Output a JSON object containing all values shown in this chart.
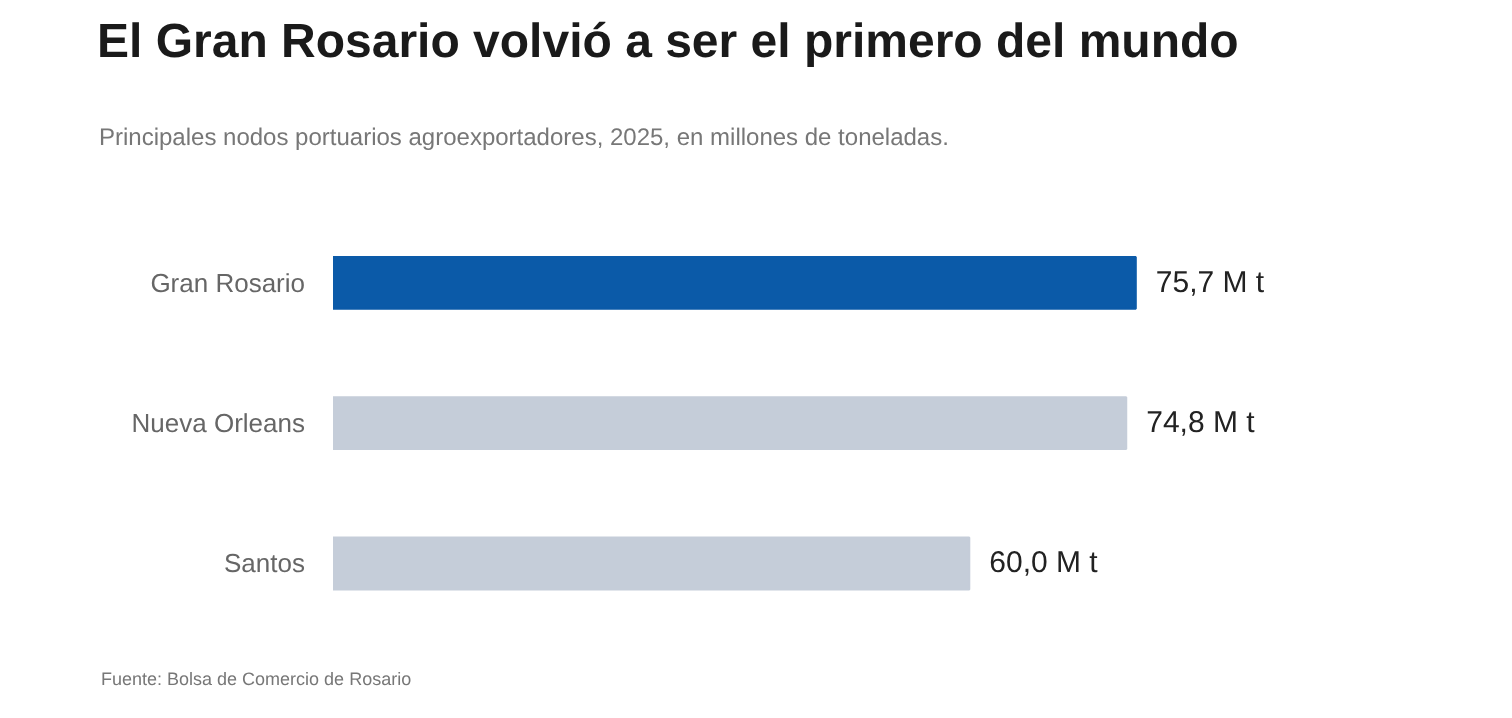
{
  "chart_data": {
    "type": "bar",
    "orientation": "horizontal",
    "title": "El Gran Rosario volvió a ser el primero del mundo",
    "subtitle": "Principales nodos portuarios agroexportadores, 2025, en millones de toneladas.",
    "categories": [
      "Gran Rosario",
      "Nueva Orleans",
      "Santos"
    ],
    "values": [
      75.7,
      74.8,
      60.0
    ],
    "colors": [
      "#0b5aa8",
      "#c5cdd9",
      "#c5cdd9"
    ],
    "value_labels": [
      "75,7 M t",
      "74,8 M t",
      "60,0 M t"
    ],
    "annotations": [
      "Fuente: Bolsa de Comercio de Rosario"
    ]
  }
}
